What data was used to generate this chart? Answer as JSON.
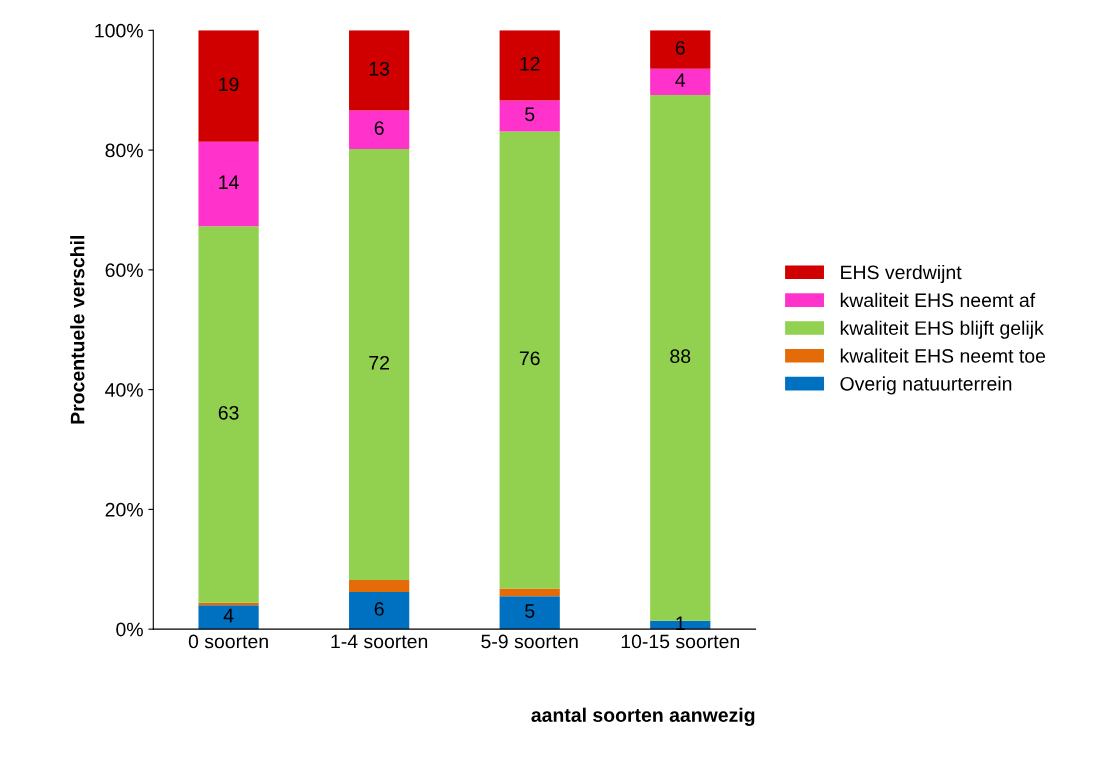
{
  "chart_data": {
    "type": "bar",
    "stacked": true,
    "xlabel": "aantal soorten aanwezig",
    "ylabel": "Procentuele verschil",
    "categories": [
      "0 soorten",
      "1-4 soorten",
      "5-9 soorten",
      "10-15 soorten"
    ],
    "ylim": [
      0,
      100
    ],
    "yticks": [
      {
        "value": 0,
        "label": "0%"
      },
      {
        "value": 20,
        "label": "20%"
      },
      {
        "value": 40,
        "label": "40%"
      },
      {
        "value": 60,
        "label": "60%"
      },
      {
        "value": 80,
        "label": "80%"
      },
      {
        "value": 100,
        "label": "100%"
      }
    ],
    "grid": false,
    "legend": "right",
    "series": [
      {
        "name": "Overig natuurterrein",
        "color": "#0070c0",
        "values": [
          4,
          6.2,
          5.5,
          1.4
        ],
        "value_labels": [
          "4",
          "6",
          "5",
          "1"
        ]
      },
      {
        "name": "kwaliteit EHS neemt toe",
        "color": "#e36c09",
        "values": [
          0.4,
          2.0,
          1.3,
          0
        ],
        "value_labels": [
          null,
          null,
          null,
          null
        ]
      },
      {
        "name": "kwaliteit EHS blijft gelijk",
        "color": "#92d050",
        "values": [
          62.9,
          72,
          76.3,
          87.8
        ],
        "value_labels": [
          "63",
          "72",
          "76",
          "88"
        ]
      },
      {
        "name": "kwaliteit EHS neemt af",
        "color": "#ff33cc",
        "values": [
          14.1,
          6.4,
          5.2,
          4.4
        ],
        "value_labels": [
          "14",
          "6",
          "5",
          "4"
        ]
      },
      {
        "name": "EHS verdwijnt",
        "color": "#d00000",
        "values": [
          18.6,
          13.4,
          11.7,
          6.4
        ],
        "value_labels": [
          "19",
          "13",
          "12",
          "6"
        ]
      }
    ]
  }
}
